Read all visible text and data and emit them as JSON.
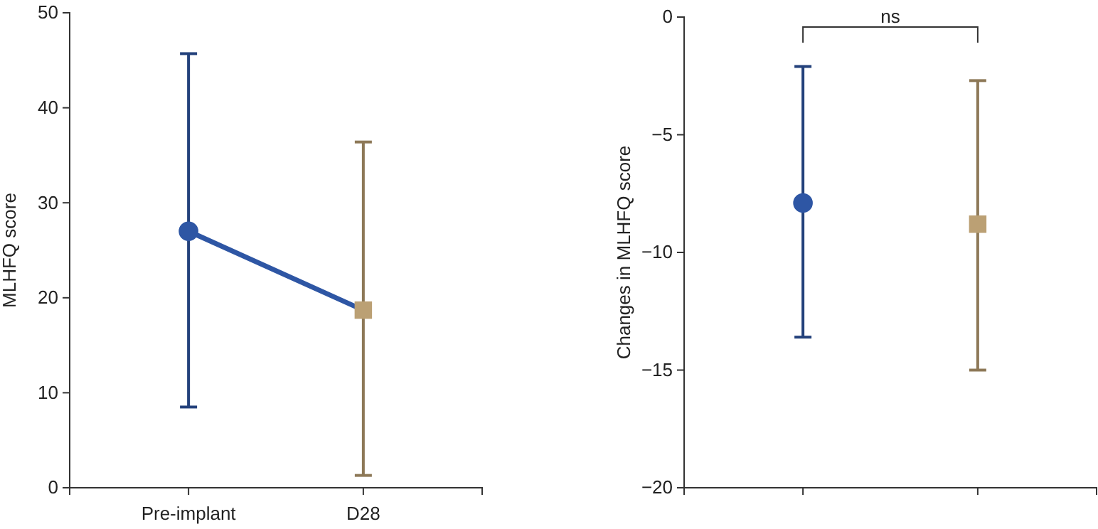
{
  "chart_data": [
    {
      "type": "scatter",
      "ylabel": "MLHFQ score",
      "categories": [
        "Pre-implant",
        "D28"
      ],
      "ylim": [
        0,
        50
      ],
      "yticks": [
        0,
        10,
        20,
        30,
        40,
        50
      ],
      "grid": false,
      "series": [
        {
          "type": "line",
          "color": "#2e56a4",
          "values": [
            27,
            18.7
          ],
          "line_style": "solid"
        },
        {
          "color": "#2e56a4",
          "values": [
            27,
            null
          ],
          "errors": [
            [
              8.5,
              45.7
            ],
            null
          ],
          "marker": "circle"
        },
        {
          "color": "#bba074",
          "values": [
            null,
            18.7
          ],
          "errors": [
            null,
            [
              1.3,
              36.4
            ]
          ],
          "marker": "square"
        }
      ]
    },
    {
      "type": "scatter",
      "ylabel": "Changes in MLHFQ score",
      "categories": [
        null,
        null
      ],
      "ylim": [
        -20,
        0
      ],
      "yticks": [
        {
          "value": 0,
          "label": "0"
        },
        {
          "value": -5,
          "label": "−5"
        },
        {
          "value": -10,
          "label": "−10"
        },
        {
          "value": -15,
          "label": "−15"
        },
        {
          "value": -20,
          "label": "−20"
        }
      ],
      "grid": false,
      "annotations": [
        "ns"
      ],
      "series": [
        {
          "color": "#2e56a4",
          "values": [
            -7.9,
            null
          ],
          "errors": [
            [
              -13.6,
              -2.1
            ],
            null
          ],
          "marker": "circle"
        },
        {
          "color": "#bba074",
          "values": [
            null,
            -8.8
          ],
          "errors": [
            null,
            [
              -15.0,
              -2.7
            ]
          ],
          "marker": "square"
        }
      ]
    }
  ]
}
